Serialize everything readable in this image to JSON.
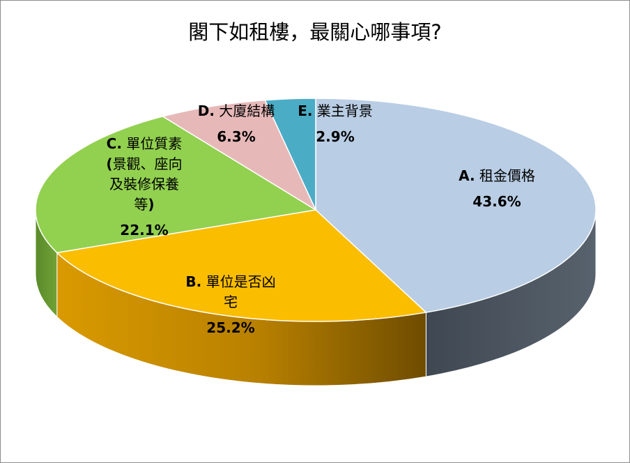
{
  "chart_data": {
    "type": "pie",
    "title": "閣下如租樓，最關心哪事項?",
    "slices": [
      {
        "label": "A. 租金價格",
        "value": 43.6,
        "value_label": "43.6%",
        "color": "#b9cde4",
        "side_color": "#4a545f"
      },
      {
        "label": "B. 單位是否凶宅",
        "value": 25.2,
        "value_label": "25.2%",
        "color": "#fbbd00",
        "side_color": "#b07f00"
      },
      {
        "label": "C. 單位質素(景觀、座向及裝修保養等)",
        "value": 22.1,
        "value_label": "22.1%",
        "color": "#92d050",
        "side_color": "#5e8f2c"
      },
      {
        "label": "D. 大廈結構",
        "value": 6.3,
        "value_label": "6.3%",
        "color": "#e6b9b8",
        "side_color": "#9c7a7a"
      },
      {
        "label": "E. 業主背景",
        "value": 2.9,
        "value_label": "2.9%",
        "color": "#4bacc6",
        "side_color": "#2c6f82"
      }
    ],
    "legend": "none",
    "style": "3d-pie"
  }
}
